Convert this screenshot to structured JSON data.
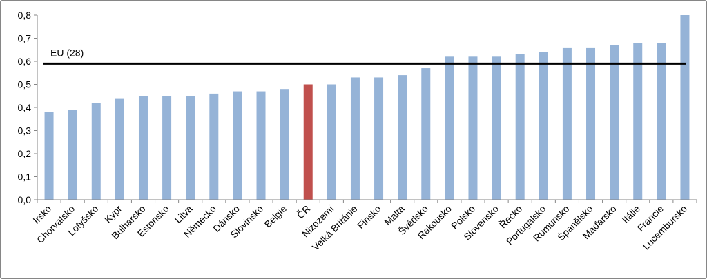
{
  "colors": {
    "bar": "#95B3D7",
    "highlight": "#C0504D",
    "reference_line": "#000000",
    "axis": "#868686"
  },
  "chart_data": {
    "type": "bar",
    "title": "",
    "xlabel": "",
    "ylabel": "",
    "ylim": [
      0,
      0.8
    ],
    "yticks": [
      "0,0",
      "0,1",
      "0,2",
      "0,3",
      "0,4",
      "0,5",
      "0,6",
      "0,7",
      "0,8"
    ],
    "ytick_values": [
      0,
      0.1,
      0.2,
      0.3,
      0.4,
      0.5,
      0.6,
      0.7,
      0.8
    ],
    "grid": false,
    "legend": "none",
    "categories": [
      "Irsko",
      "Chorvatsko",
      "Lotyšsko",
      "Kypr",
      "Bulharsko",
      "Estonsko",
      "Litva",
      "Německo",
      "Dánsko",
      "Slovinsko",
      "Belgie",
      "ČR",
      "Nizozemí",
      "Velká Británie",
      "Finsko",
      "Malta",
      "Švédsko",
      "Rakousko",
      "Polsko",
      "Slovensko",
      "Řecko",
      "Portugalsko",
      "Rumunsko",
      "Španělsko",
      "Maďarsko",
      "Itálie",
      "Francie",
      "Lucembursko"
    ],
    "values": [
      0.38,
      0.39,
      0.42,
      0.44,
      0.45,
      0.45,
      0.45,
      0.46,
      0.47,
      0.47,
      0.48,
      0.5,
      0.5,
      0.53,
      0.53,
      0.54,
      0.57,
      0.62,
      0.62,
      0.62,
      0.63,
      0.64,
      0.66,
      0.66,
      0.67,
      0.68,
      0.68,
      0.8
    ],
    "highlighted_category": "ČR",
    "reference_line": {
      "label": "EU (28)",
      "value": 0.59
    }
  }
}
